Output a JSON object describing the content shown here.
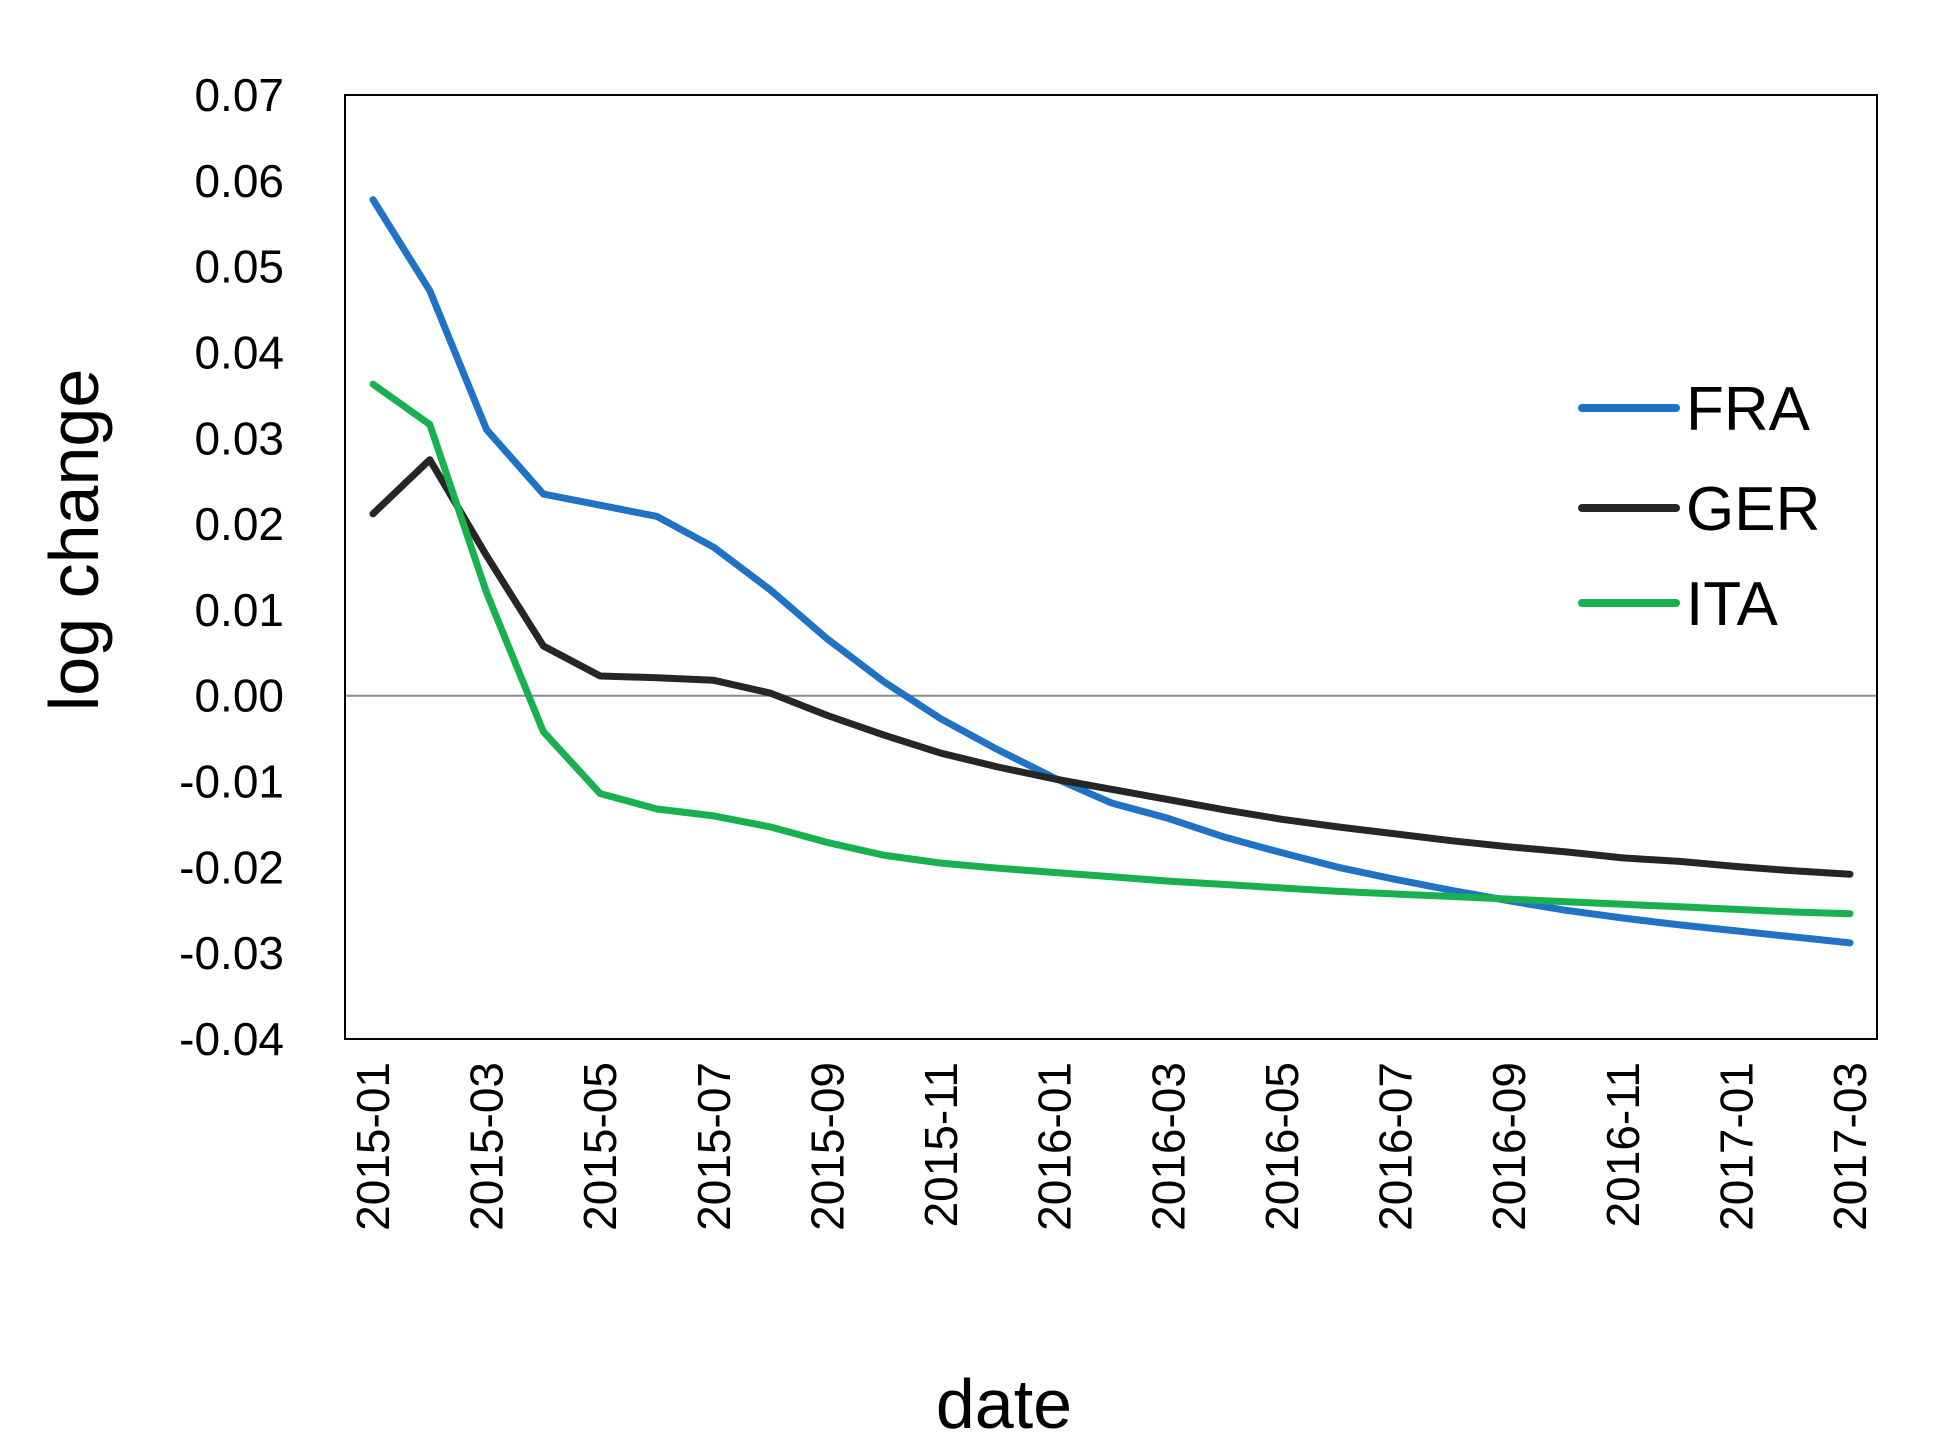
{
  "chart_data": {
    "type": "line",
    "xlabel": "date",
    "ylabel": "log change",
    "ylim": [
      -0.04,
      0.07
    ],
    "ytick_step": 0.01,
    "ytick_labels": [
      "-0.04",
      "-0.03",
      "-0.02",
      "-0.01",
      "0.00",
      "0.01",
      "0.02",
      "0.03",
      "0.04",
      "0.05",
      "0.06",
      "0.07"
    ],
    "x": [
      "2015-01",
      "2015-02",
      "2015-03",
      "2015-04",
      "2015-05",
      "2015-06",
      "2015-07",
      "2015-08",
      "2015-09",
      "2015-10",
      "2015-11",
      "2015-12",
      "2016-01",
      "2016-02",
      "2016-03",
      "2016-04",
      "2016-05",
      "2016-06",
      "2016-07",
      "2016-08",
      "2016-09",
      "2016-10",
      "2016-11",
      "2016-12",
      "2017-01",
      "2017-02",
      "2017-03"
    ],
    "xtick_labels": [
      "2015-01",
      "2015-03",
      "2015-05",
      "2015-07",
      "2015-09",
      "2015-11",
      "2016-01",
      "2016-03",
      "2016-05",
      "2016-07",
      "2016-09",
      "2016-11",
      "2017-01",
      "2017-03"
    ],
    "zero_line": true,
    "grid": false,
    "legend_position": "right",
    "series": [
      {
        "name": "FRA",
        "color": "#1f72c4",
        "values": [
          0.0578,
          0.0472,
          0.031,
          0.0235,
          0.0222,
          0.0209,
          0.0173,
          0.0123,
          0.0066,
          0.0016,
          -0.0027,
          -0.0063,
          -0.0096,
          -0.0125,
          -0.0143,
          -0.0165,
          -0.0183,
          -0.02,
          -0.0214,
          -0.0227,
          -0.0239,
          -0.025,
          -0.0259,
          -0.0267,
          -0.0274,
          -0.0281,
          -0.0288
        ]
      },
      {
        "name": "GER",
        "color": "#262626",
        "values": [
          0.0212,
          0.0275,
          0.0163,
          0.0058,
          0.0023,
          0.0021,
          0.0018,
          0.0003,
          -0.0023,
          -0.0046,
          -0.0067,
          -0.0083,
          -0.0097,
          -0.0109,
          -0.0121,
          -0.0133,
          -0.0144,
          -0.0153,
          -0.0161,
          -0.0169,
          -0.0176,
          -0.0182,
          -0.0189,
          -0.0193,
          -0.0199,
          -0.0204,
          -0.0208
        ]
      },
      {
        "name": "ITA",
        "color": "#19b04f",
        "values": [
          0.0363,
          0.0316,
          0.012,
          -0.0042,
          -0.0114,
          -0.0132,
          -0.014,
          -0.0153,
          -0.0171,
          -0.0186,
          -0.0195,
          -0.0201,
          -0.0206,
          -0.0211,
          -0.0216,
          -0.022,
          -0.0224,
          -0.0228,
          -0.0231,
          -0.0234,
          -0.0237,
          -0.024,
          -0.0243,
          -0.0246,
          -0.0249,
          -0.0252,
          -0.0254
        ]
      }
    ]
  }
}
